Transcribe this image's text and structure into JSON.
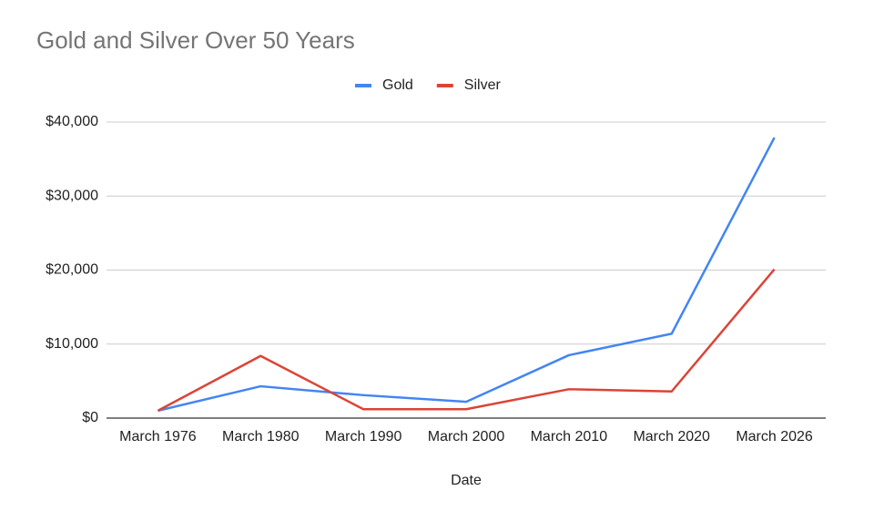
{
  "chart_data": {
    "type": "line",
    "title": "Gold and Silver Over 50 Years",
    "x_label": "Date",
    "categories": [
      "March 1976",
      "March 1980",
      "March 1990",
      "March 2000",
      "March 2010",
      "March 2020",
      "March 2026"
    ],
    "series": [
      {
        "name": "Gold",
        "color": "#4285f4",
        "values": [
          1000,
          4300,
          3100,
          2200,
          8500,
          11400,
          37900
        ]
      },
      {
        "name": "Silver",
        "color": "#db4437",
        "values": [
          1000,
          8400,
          1200,
          1200,
          3900,
          3600,
          20100
        ]
      }
    ],
    "ylim": [
      0,
      40000
    ],
    "yticks": [
      {
        "value": 0,
        "label": "$0"
      },
      {
        "value": 10000,
        "label": "$10,000"
      },
      {
        "value": 20000,
        "label": "$20,000"
      },
      {
        "value": 30000,
        "label": "$30,000"
      },
      {
        "value": 40000,
        "label": "$40,000"
      }
    ],
    "grid": true,
    "legend": "top"
  }
}
